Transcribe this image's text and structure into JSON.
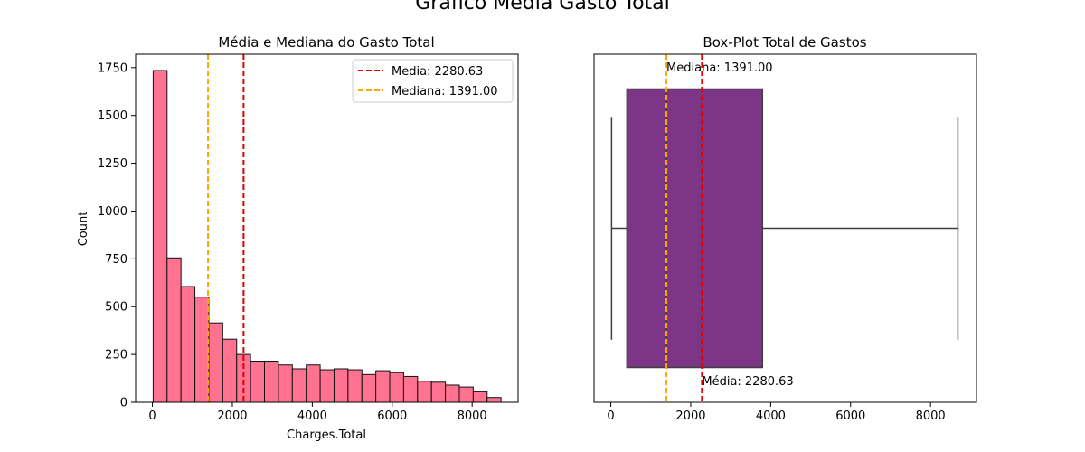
{
  "figure": {
    "suptitle": "Gráfico Média Gasto Total"
  },
  "chart_data": [
    {
      "type": "bar",
      "title": "Média e Mediana do Gasto Total",
      "xlabel": "Charges.Total",
      "ylabel": "Count",
      "xlim": [
        -420,
        9150
      ],
      "ylim": [
        0,
        1820
      ],
      "xticks": [
        0,
        2000,
        4000,
        6000,
        8000
      ],
      "xtick_labels": [
        "0",
        "2000",
        "4000",
        "6000",
        "8000"
      ],
      "yticks": [
        0,
        250,
        500,
        750,
        1000,
        1250,
        1500,
        1750
      ],
      "ytick_labels": [
        "0",
        "250",
        "500",
        "750",
        "1000",
        "1250",
        "1500",
        "1750"
      ],
      "bin_start": 18.8,
      "bin_width": 348.2,
      "counts": [
        1735,
        755,
        605,
        550,
        415,
        330,
        250,
        215,
        215,
        195,
        175,
        195,
        170,
        175,
        170,
        145,
        165,
        155,
        135,
        110,
        105,
        90,
        80,
        55,
        25
      ],
      "bar_color": "#ff7290",
      "edge_color": "#111111",
      "lines": [
        {
          "label": "Media: 2280.63",
          "x": 2280.63,
          "color": "#e00000"
        },
        {
          "label": "Mediana: 1391.00",
          "x": 1391.0,
          "color": "#ffa500"
        }
      ],
      "legend_position": "upper right"
    },
    {
      "type": "box",
      "title": "Box-Plot Total de Gastos",
      "xlim": [
        -420,
        9150
      ],
      "xticks": [
        0,
        2000,
        4000,
        6000,
        8000
      ],
      "xtick_labels": [
        "0",
        "2000",
        "4000",
        "6000",
        "8000"
      ],
      "box": {
        "whisker_low": 18.8,
        "q1": 401.45,
        "median": 1391.0,
        "q3": 3794.74,
        "whisker_high": 8684.8
      },
      "box_color": "#7d3586",
      "lines": [
        {
          "x": 2280.63,
          "color": "#e00000"
        },
        {
          "x": 1391.0,
          "color": "#ffa500"
        }
      ],
      "annotations": [
        {
          "text": "Mediana: 1391.00",
          "x": 1391.0,
          "position": "top"
        },
        {
          "text": "Média: 2280.63",
          "x": 2280.63,
          "position": "bottom"
        }
      ]
    }
  ]
}
